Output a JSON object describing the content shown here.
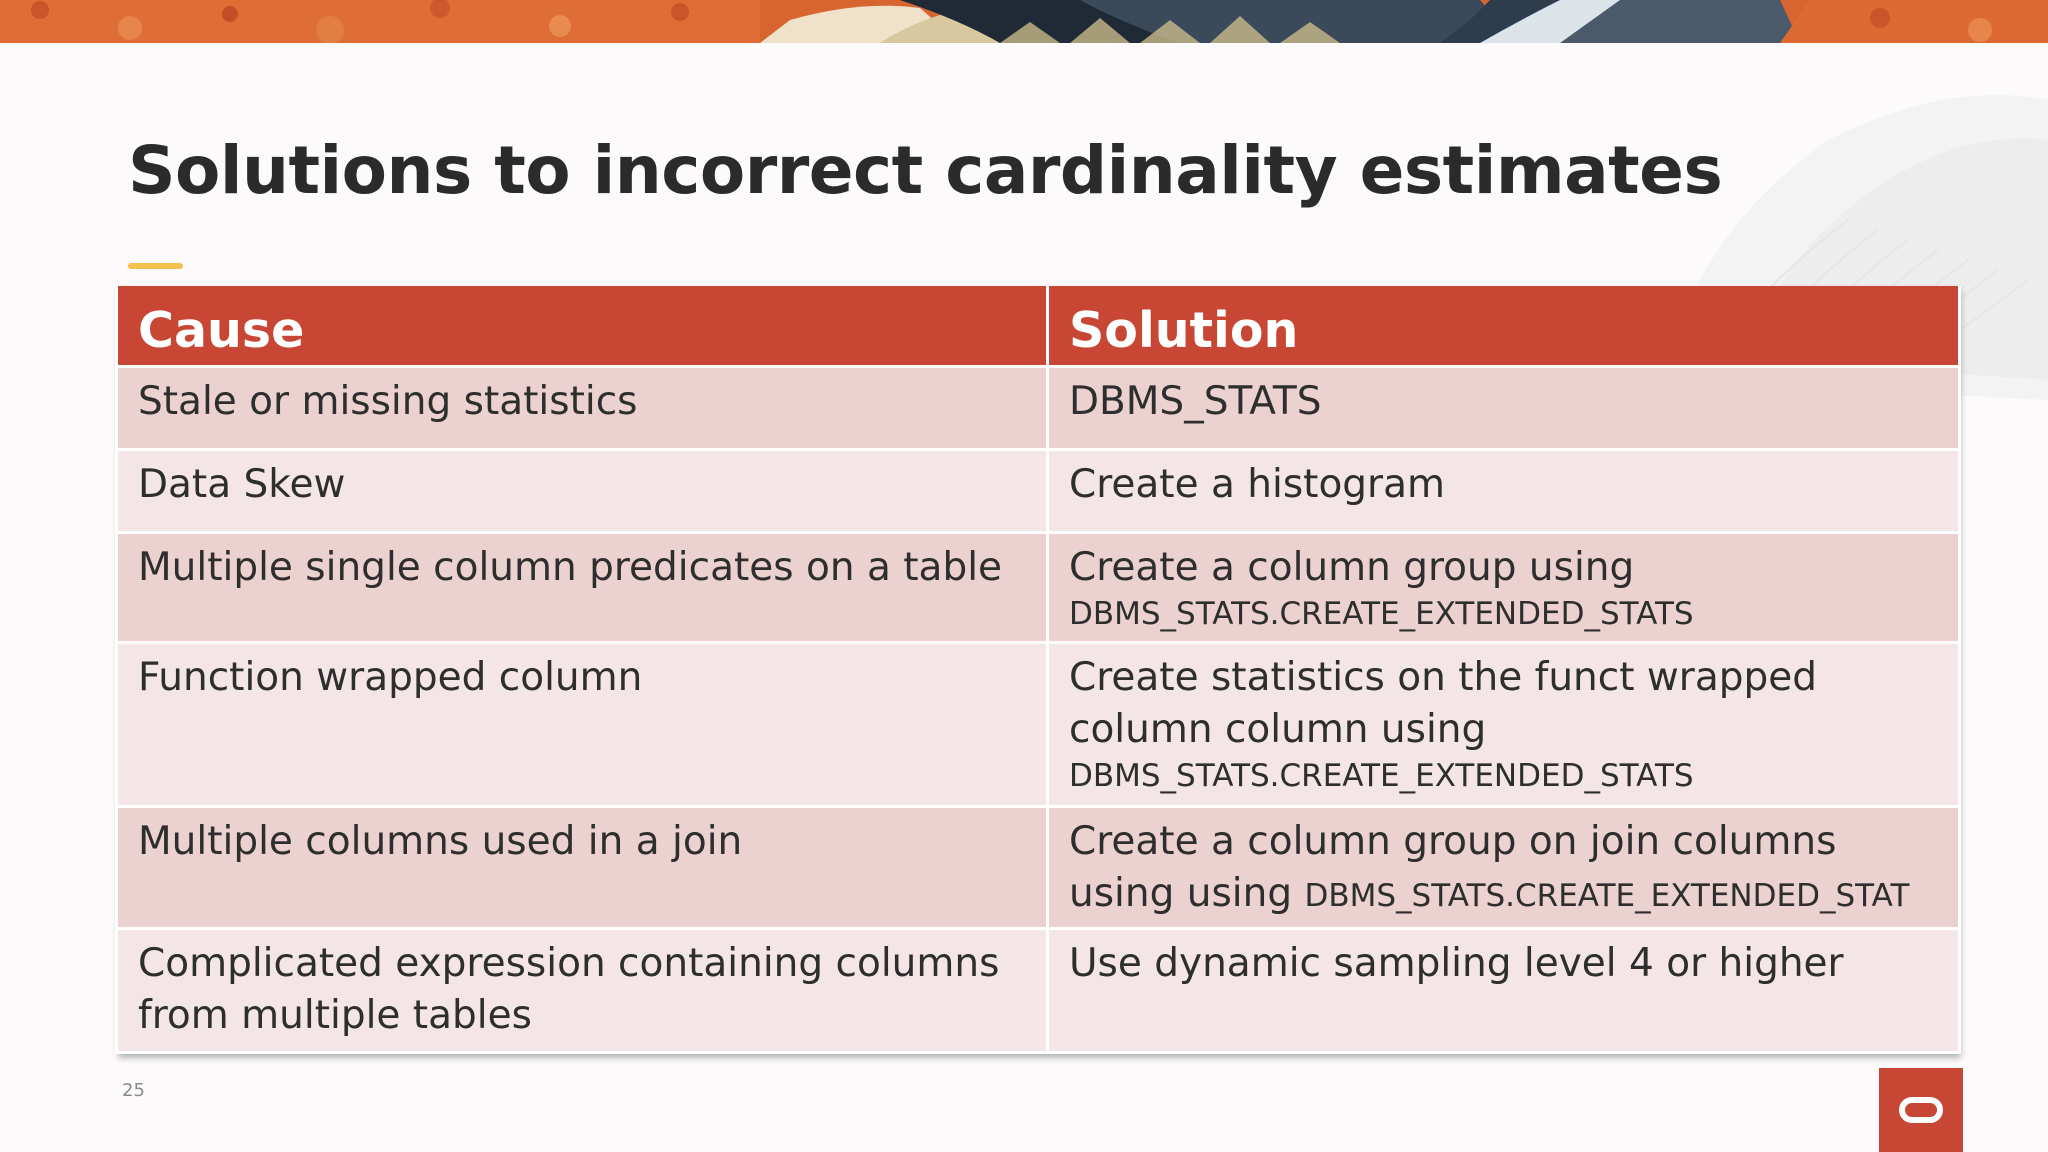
{
  "slide": {
    "title": "Solutions to incorrect cardinality estimates",
    "page_number": "25"
  },
  "table": {
    "headers": {
      "cause": "Cause",
      "solution": "Solution"
    },
    "rows": [
      {
        "cause": "Stale or missing statistics",
        "solution": "DBMS_STATS",
        "solution_code": ""
      },
      {
        "cause": "Data Skew",
        "solution": "Create a histogram",
        "solution_code": ""
      },
      {
        "cause": "Multiple single column predicates on a table",
        "solution": "Create a column group using",
        "solution_code": "DBMS_STATS.CREATE_EXTENDED_STATS"
      },
      {
        "cause": "Function wrapped column",
        "solution": "Create statistics on the funct wrapped column column using",
        "solution_code": "DBMS_STATS.CREATE_EXTENDED_STATS"
      },
      {
        "cause": "Multiple columns used in a join",
        "solution": "Create a column group on join columns using using",
        "solution_code": "DBMS_STATS.CREATE_EXTENDED_STAT"
      },
      {
        "cause": "Complicated expression containing columns from multiple tables",
        "solution": "Use dynamic sampling level 4 or higher",
        "solution_code": ""
      }
    ]
  },
  "colors": {
    "header_bg": "#c74634",
    "row_odd": "#ecd1d1",
    "row_even": "#f4e6e6",
    "accent": "#f2c14e",
    "logo": "#c74634"
  },
  "icons": {
    "logo": "oracle-logo-icon"
  }
}
